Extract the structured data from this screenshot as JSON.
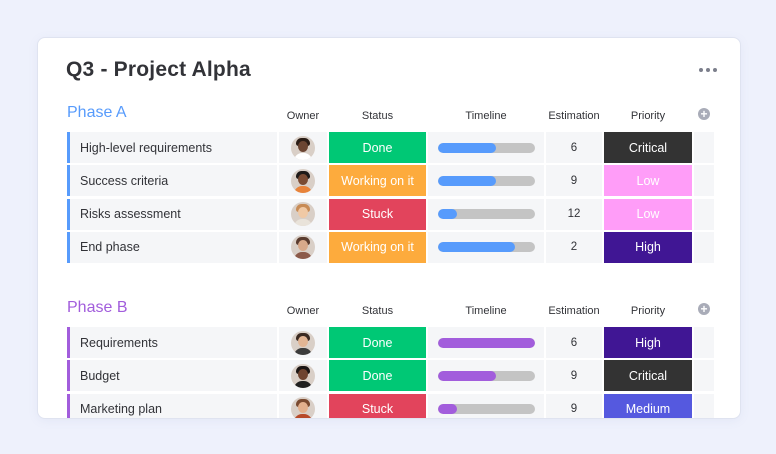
{
  "board": {
    "title": "Q3 - Project Alpha"
  },
  "columns": {
    "owner": "Owner",
    "status": "Status",
    "timeline": "Timeline",
    "estimation": "Estimation",
    "priority": "Priority"
  },
  "colors": {
    "done": "#00c875",
    "working": "#fdab3d",
    "stuck": "#e2445c",
    "priority_critical": "#333333",
    "priority_low": "#ff9df8",
    "priority_high": "#401694",
    "priority_medium": "#5559df",
    "phase_a": "#579bfc",
    "phase_b": "#a25ddc",
    "timeline_a": "#579bfc",
    "timeline_b": "#a25ddc"
  },
  "groups": [
    {
      "name": "Phase A",
      "color_key": "phase_a",
      "rows": [
        {
          "item": "High-level requirements",
          "owner_icon": "person-avatar",
          "status": "Done",
          "status_key": "done",
          "timeline_progress": 0.6,
          "estimation": "6",
          "priority": "Critical",
          "priority_key": "priority_critical"
        },
        {
          "item": "Success criteria",
          "owner_icon": "person-avatar",
          "status": "Working on it",
          "status_key": "working",
          "timeline_progress": 0.6,
          "estimation": "9",
          "priority": "Low",
          "priority_key": "priority_low"
        },
        {
          "item": "Risks assessment",
          "owner_icon": "person-avatar",
          "status": "Stuck",
          "status_key": "stuck",
          "timeline_progress": 0.2,
          "estimation": "12",
          "priority": "Low",
          "priority_key": "priority_low"
        },
        {
          "item": "End phase",
          "owner_icon": "person-avatar",
          "status": "Working on it",
          "status_key": "working",
          "timeline_progress": 0.8,
          "estimation": "2",
          "priority": "High",
          "priority_key": "priority_high"
        }
      ]
    },
    {
      "name": "Phase B",
      "color_key": "phase_b",
      "rows": [
        {
          "item": "Requirements",
          "owner_icon": "person-avatar",
          "status": "Done",
          "status_key": "done",
          "timeline_progress": 1.0,
          "estimation": "6",
          "priority": "High",
          "priority_key": "priority_high"
        },
        {
          "item": "Budget",
          "owner_icon": "person-avatar",
          "status": "Done",
          "status_key": "done",
          "timeline_progress": 0.6,
          "estimation": "9",
          "priority": "Critical",
          "priority_key": "priority_critical"
        },
        {
          "item": "Marketing plan",
          "owner_icon": "person-avatar",
          "status": "Stuck",
          "status_key": "stuck",
          "timeline_progress": 0.2,
          "estimation": "9",
          "priority": "Medium",
          "priority_key": "priority_medium"
        }
      ]
    }
  ]
}
